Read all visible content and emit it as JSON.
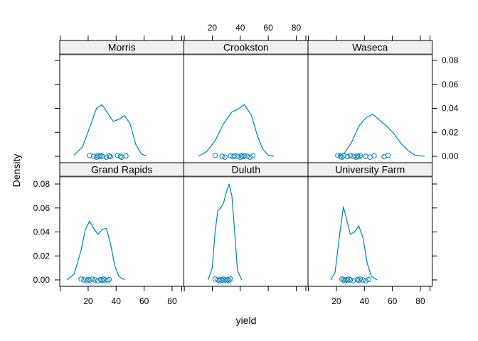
{
  "chart_data": {
    "type": "line",
    "subtype": "density-lattice",
    "title": "",
    "xlabel": "yield",
    "ylabel": "Density",
    "xlim": [
      0,
      88
    ],
    "ylim": [
      0,
      0.088
    ],
    "x_ticks": [
      20,
      40,
      60,
      80
    ],
    "y_ticks": [
      0.0,
      0.02,
      0.04,
      0.06,
      0.08
    ],
    "y_tick_labels": [
      "0.00",
      "0.02",
      "0.04",
      "0.06",
      "0.08"
    ],
    "grid": false,
    "line_color": "#0080b0",
    "point_marker": "open-circle",
    "layout": {
      "columns": 3,
      "rows": 2
    },
    "panels": [
      {
        "name": "Morris",
        "row": 0,
        "col": 0,
        "curve_x": [
          10,
          16,
          22,
          26,
          30,
          34,
          38,
          42,
          46,
          50,
          54,
          58,
          62
        ],
        "curve_y": [
          0.001,
          0.008,
          0.027,
          0.04,
          0.043,
          0.036,
          0.029,
          0.031,
          0.034,
          0.027,
          0.01,
          0.002,
          0.0
        ],
        "points": [
          21,
          24,
          26,
          27,
          28,
          29,
          30,
          33,
          35,
          36,
          41,
          43,
          44,
          47
        ]
      },
      {
        "name": "Crookston",
        "row": 0,
        "col": 1,
        "curve_x": [
          10,
          16,
          22,
          28,
          34,
          38,
          43,
          48,
          52,
          56,
          60,
          64
        ],
        "curve_y": [
          0.0,
          0.004,
          0.013,
          0.027,
          0.037,
          0.039,
          0.043,
          0.034,
          0.018,
          0.006,
          0.001,
          0.0
        ],
        "points": [
          22,
          27,
          29,
          33,
          35,
          36,
          38,
          40,
          41,
          42,
          43,
          45,
          47,
          49
        ]
      },
      {
        "name": "Waseca",
        "row": 0,
        "col": 2,
        "curve_x": [
          21,
          26,
          31,
          36,
          41,
          46,
          51,
          56,
          61,
          66,
          71,
          76,
          83
        ],
        "curve_y": [
          0.0,
          0.003,
          0.012,
          0.025,
          0.032,
          0.035,
          0.03,
          0.025,
          0.019,
          0.011,
          0.005,
          0.001,
          0.0
        ],
        "points": [
          21,
          23,
          24,
          25,
          28,
          30,
          32,
          34,
          35,
          36,
          37,
          41,
          44,
          47,
          54,
          57
        ]
      },
      {
        "name": "Grand Rapids",
        "row": 1,
        "col": 0,
        "curve_x": [
          5,
          10,
          15,
          18,
          21,
          24,
          27,
          30,
          33,
          36,
          39,
          42,
          46
        ],
        "curve_y": [
          0.0,
          0.005,
          0.025,
          0.042,
          0.049,
          0.043,
          0.038,
          0.042,
          0.043,
          0.03,
          0.012,
          0.003,
          0.0
        ],
        "points": [
          15,
          17,
          19,
          20,
          21,
          23,
          25,
          27,
          29,
          30,
          31,
          32,
          34,
          35
        ]
      },
      {
        "name": "Duluth",
        "row": 1,
        "col": 1,
        "curve_x": [
          17,
          20,
          22,
          24,
          26,
          28,
          30,
          32,
          34,
          36,
          38,
          41
        ],
        "curve_y": [
          0.0,
          0.01,
          0.04,
          0.058,
          0.06,
          0.064,
          0.073,
          0.08,
          0.07,
          0.04,
          0.008,
          0.0
        ],
        "points": [
          22,
          24,
          25,
          26,
          27,
          28,
          29,
          30,
          31,
          32,
          33
        ]
      },
      {
        "name": "University Farm",
        "row": 1,
        "col": 2,
        "curve_x": [
          16,
          19,
          22,
          25,
          28,
          30,
          33,
          36,
          39,
          42,
          45,
          49
        ],
        "curve_y": [
          0.0,
          0.006,
          0.035,
          0.061,
          0.047,
          0.038,
          0.04,
          0.045,
          0.035,
          0.014,
          0.003,
          0.0
        ],
        "points": [
          24,
          25,
          26,
          27,
          28,
          29,
          30,
          32,
          35,
          36,
          37,
          39,
          41,
          43
        ]
      }
    ]
  },
  "labels": {
    "xlabel": "yield",
    "ylabel": "Density",
    "panel_titles": [
      "Morris",
      "Crookston",
      "Waseca",
      "Grand Rapids",
      "Duluth",
      "University Farm"
    ]
  },
  "colors": {
    "line": "#0080b0",
    "strip_bg": "#f0f0f0",
    "strip_border": "#4d4d4d",
    "axis": "#000000"
  }
}
